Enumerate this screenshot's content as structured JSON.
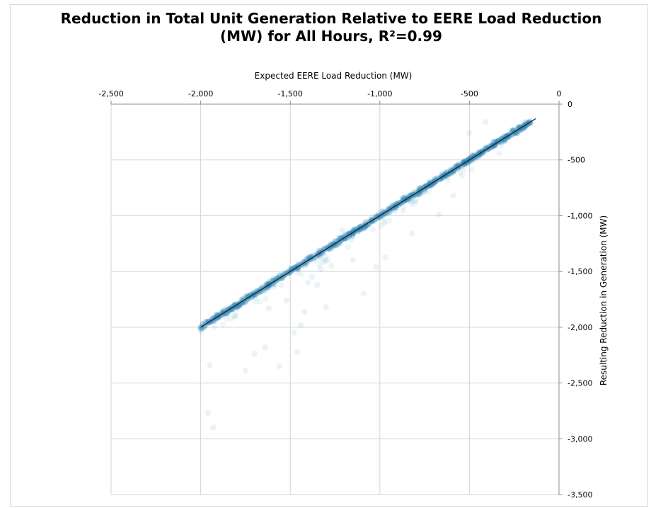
{
  "chart_data": {
    "type": "scatter",
    "title": "Reduction in Total Unit Generation Relative to EERE Load Reduction\n(MW) for All Hours, R²=0.99",
    "xlabel": "Expected EERE Load Reduction (MW)",
    "ylabel": "Resulting Reduction in Generation (MW)",
    "xlim": [
      -2500,
      0
    ],
    "ylim": [
      -3500,
      0
    ],
    "x_ticks": [
      -2500,
      -2000,
      -1500,
      -1000,
      -500,
      0
    ],
    "y_ticks": [
      0,
      -500,
      -1000,
      -1500,
      -2000,
      -2500,
      -3000,
      -3500
    ],
    "x_tick_labels": [
      "-2,500",
      "-2,000",
      "-1,500",
      "-1,000",
      "-500",
      "0"
    ],
    "y_tick_labels": [
      "0",
      "-500",
      "-1,000",
      "-1,500",
      "-2,000",
      "-2,500",
      "-3,000",
      "-3,500"
    ],
    "x_axis_position": "top",
    "y_axis_position": "right",
    "grid": true,
    "point_color": "#2e86b8",
    "trendline_color": "#1a1a1a",
    "trendline": {
      "x": [
        -2000,
        -130
      ],
      "y": [
        -2000,
        -130
      ]
    },
    "main_band": {
      "x_range": [
        -2000,
        -150
      ],
      "slope": 1.0,
      "intercept": 0
    },
    "outliers": [
      {
        "x": -1960,
        "y": -2770
      },
      {
        "x": -1930,
        "y": -2900
      },
      {
        "x": -1950,
        "y": -2340
      },
      {
        "x": -1750,
        "y": -2390
      },
      {
        "x": -1700,
        "y": -2240
      },
      {
        "x": -1640,
        "y": -2180
      },
      {
        "x": -1620,
        "y": -1830
      },
      {
        "x": -1560,
        "y": -2350
      },
      {
        "x": -1520,
        "y": -1760
      },
      {
        "x": -1480,
        "y": -2050
      },
      {
        "x": -1460,
        "y": -2220
      },
      {
        "x": -1440,
        "y": -1980
      },
      {
        "x": -1420,
        "y": -1860
      },
      {
        "x": -1400,
        "y": -1600
      },
      {
        "x": -1380,
        "y": -1550
      },
      {
        "x": -1350,
        "y": -1620
      },
      {
        "x": -1330,
        "y": -1480
      },
      {
        "x": -1300,
        "y": -1820
      },
      {
        "x": -1270,
        "y": -1450
      },
      {
        "x": -1250,
        "y": -1270
      },
      {
        "x": -1210,
        "y": -1130
      },
      {
        "x": -1150,
        "y": -1400
      },
      {
        "x": -1090,
        "y": -1700
      },
      {
        "x": -1020,
        "y": -1460
      },
      {
        "x": -970,
        "y": -1370
      },
      {
        "x": -820,
        "y": -1160
      },
      {
        "x": -670,
        "y": -990
      },
      {
        "x": -500,
        "y": -260
      },
      {
        "x": -410,
        "y": -160
      },
      {
        "x": -590,
        "y": -820
      }
    ]
  }
}
